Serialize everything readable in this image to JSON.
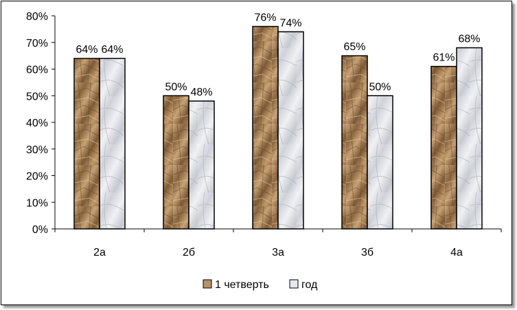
{
  "chart_data": {
    "type": "bar",
    "categories": [
      "2а",
      "2б",
      "3а",
      "3б",
      "4а"
    ],
    "series": [
      {
        "name": "1 четверть",
        "values": [
          64,
          50,
          76,
          65,
          61
        ],
        "color": "#b8926a",
        "labels": [
          "64%",
          "50%",
          "76%",
          "65%",
          "61%"
        ]
      },
      {
        "name": "год",
        "values": [
          64,
          48,
          74,
          50,
          68
        ],
        "color": "#e6e8ee",
        "labels": [
          "64%",
          "48%",
          "74%",
          "50%",
          "68%"
        ]
      }
    ],
    "ylim": [
      0,
      80
    ],
    "yticks": [
      "0%",
      "10%",
      "20%",
      "30%",
      "40%",
      "50%",
      "60%",
      "70%",
      "80%"
    ],
    "grid": false,
    "legend_position": "bottom"
  }
}
